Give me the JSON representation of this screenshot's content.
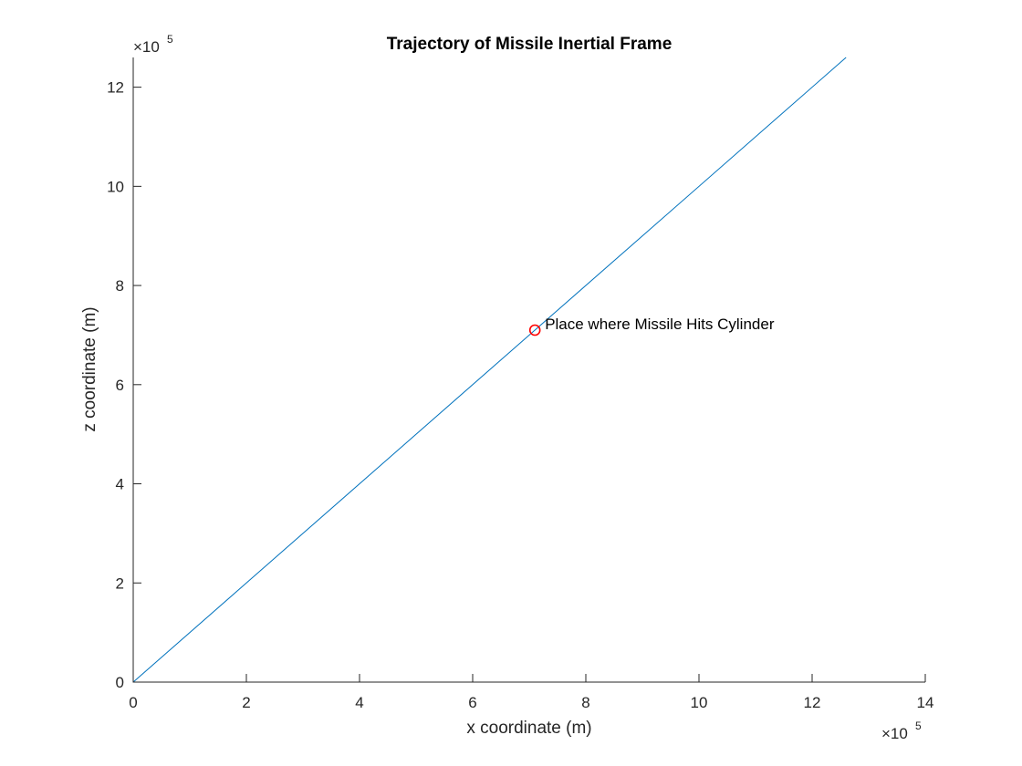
{
  "chart_data": {
    "type": "line",
    "title": "Trajectory of Missile Inertial Frame",
    "xlabel": "x coordinate (m)",
    "ylabel": "z coordinate (m)",
    "x_multiplier": {
      "base": "×10",
      "exponent": "5"
    },
    "y_multiplier": {
      "base": "×10",
      "exponent": "5"
    },
    "xlim": [
      0,
      14
    ],
    "ylim": [
      0,
      12.6
    ],
    "xticks": [
      0,
      2,
      4,
      6,
      8,
      10,
      12,
      14
    ],
    "yticks": [
      0,
      2,
      4,
      6,
      8,
      10,
      12
    ],
    "grid": false,
    "series": [
      {
        "color": "#0072bd",
        "x": [
          0,
          12.6
        ],
        "y": [
          0,
          12.6
        ]
      }
    ],
    "marker": {
      "x": 7.1,
      "y": 7.1,
      "color": "#ff0000",
      "shape": "circle-open"
    },
    "annotation": {
      "text": "Place where Missile Hits Cylinder",
      "x": 7.1,
      "y": 7.1
    }
  }
}
